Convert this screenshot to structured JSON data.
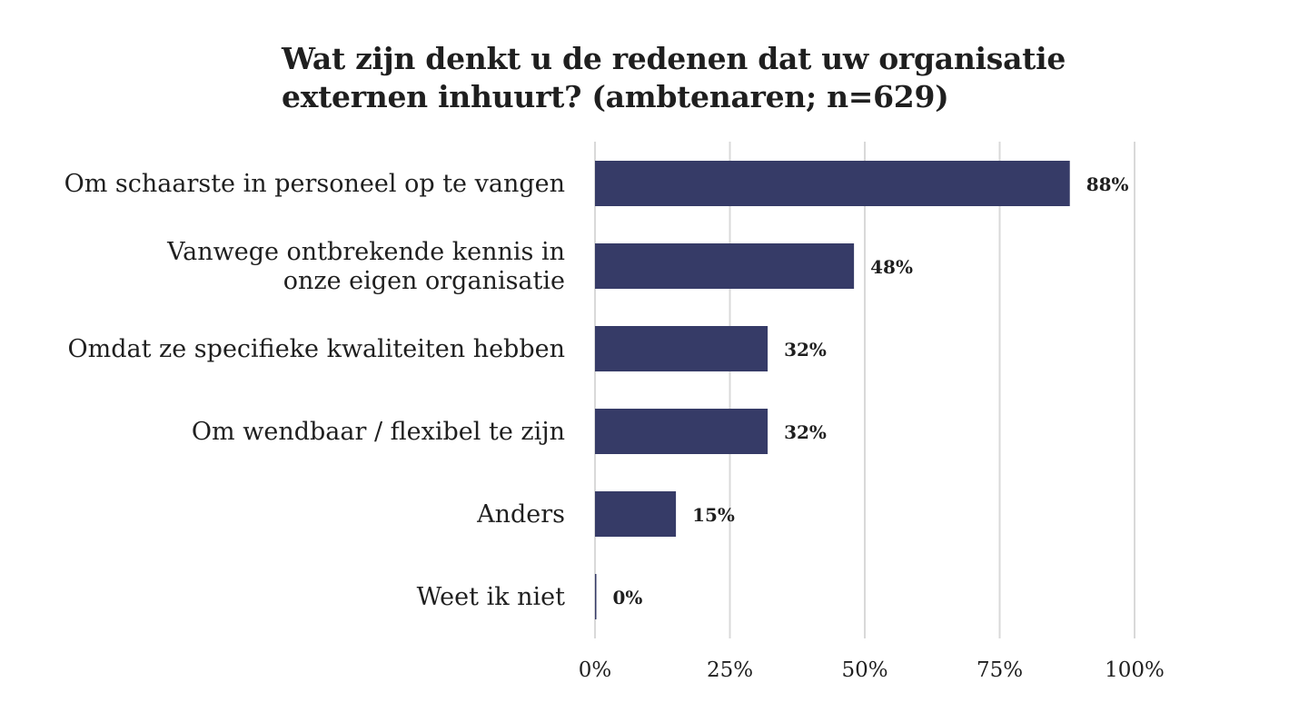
{
  "chart_data": {
    "type": "bar",
    "orientation": "horizontal",
    "title_lines": [
      "Wat zijn denkt u de redenen dat uw organisatie",
      "externen inhuurt? (ambtenaren; n=629)"
    ],
    "categories": [
      [
        "Om schaarste in personeel op te vangen"
      ],
      [
        "Vanwege ontbrekende kennis in",
        "onze eigen organisatie"
      ],
      [
        "Omdat ze specifieke kwaliteiten hebben"
      ],
      [
        "Om wendbaar / flexibel te zijn"
      ],
      [
        "Anders"
      ],
      [
        "Weet ik niet"
      ]
    ],
    "values": [
      88,
      48,
      32,
      32,
      15,
      0
    ],
    "value_labels": [
      "88%",
      "48%",
      "32%",
      "32%",
      "15%",
      "0%"
    ],
    "xlim": [
      0,
      100
    ],
    "xticks": [
      0,
      25,
      50,
      75,
      100
    ],
    "xtick_labels": [
      "0%",
      "25%",
      "50%",
      "75%",
      "100%"
    ],
    "xlabel": "",
    "ylabel": "",
    "grid": "vertical",
    "legend": "none",
    "colors": {
      "bar": "#363b67",
      "grid": "#d9d9d9",
      "text": "#1f1f1f"
    }
  }
}
